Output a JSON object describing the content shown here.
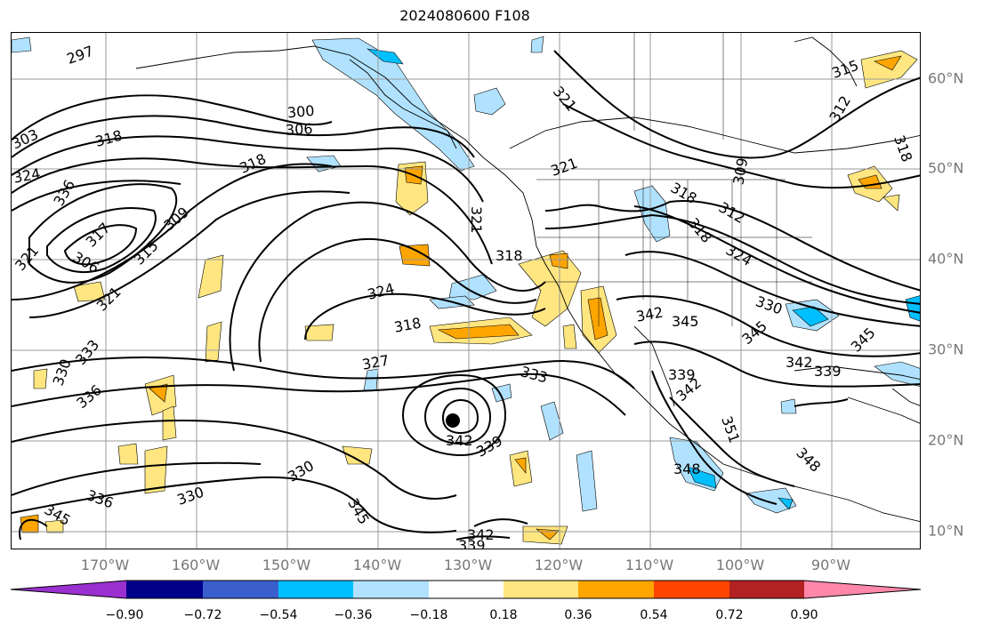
{
  "title": "2024080600 F108",
  "lon_labels": [
    "170°W",
    "160°W",
    "150°W",
    "140°W",
    "130°W",
    "120°W",
    "110°W",
    "100°W",
    "90°W"
  ],
  "lat_labels": [
    "60°N",
    "50°N",
    "40°N",
    "30°N",
    "20°N",
    "10°N"
  ],
  "colorbar": {
    "tick_labels": [
      "−0.90",
      "−0.72",
      "−0.54",
      "−0.36",
      "−0.18",
      "0.18",
      "0.36",
      "0.54",
      "0.72",
      "0.90"
    ],
    "colors": [
      "#9b30d0",
      "#00008b",
      "#3a5fcd",
      "#00bfff",
      "#b0e2ff",
      "#ffffff",
      "#ffe680",
      "#ffa500",
      "#ff4500",
      "#b22222",
      "#ff88aa"
    ]
  },
  "contour_labels": [
    {
      "text": "297",
      "rot": -20
    },
    {
      "text": "303",
      "rot": -25
    },
    {
      "text": "318",
      "rot": -15
    },
    {
      "text": "324",
      "rot": -10
    },
    {
      "text": "336",
      "rot": -60
    },
    {
      "text": "300",
      "rot": -5
    },
    {
      "text": "306",
      "rot": -3
    },
    {
      "text": "318",
      "rot": -25
    },
    {
      "text": "309",
      "rot": -40
    },
    {
      "text": "315",
      "rot": -45
    },
    {
      "text": "317",
      "rot": -45
    },
    {
      "text": "306",
      "rot": 30
    },
    {
      "text": "321",
      "rot": -50
    },
    {
      "text": "321",
      "rot": -45
    },
    {
      "text": "324",
      "rot": -15
    },
    {
      "text": "318",
      "rot": -10
    },
    {
      "text": "327",
      "rot": -10
    },
    {
      "text": "333",
      "rot": -50
    },
    {
      "text": "330",
      "rot": -70
    },
    {
      "text": "336",
      "rot": -40
    },
    {
      "text": "333",
      "rot": 15
    },
    {
      "text": "342",
      "rot": 0
    },
    {
      "text": "339",
      "rot": -30
    },
    {
      "text": "330",
      "rot": -30
    },
    {
      "text": "330",
      "rot": -20
    },
    {
      "text": "336",
      "rot": 20
    },
    {
      "text": "345",
      "rot": 30
    },
    {
      "text": "345",
      "rot": 60
    },
    {
      "text": "342",
      "rot": 0
    },
    {
      "text": "339",
      "rot": 0
    },
    {
      "text": "321",
      "rot": 50
    },
    {
      "text": "321",
      "rot": 90
    },
    {
      "text": "321",
      "rot": -20
    },
    {
      "text": "318",
      "rot": 0
    },
    {
      "text": "318",
      "rot": 30
    },
    {
      "text": "318",
      "rot": 50
    },
    {
      "text": "312",
      "rot": 30
    },
    {
      "text": "324",
      "rot": 30
    },
    {
      "text": "309",
      "rot": -80
    },
    {
      "text": "315",
      "rot": -20
    },
    {
      "text": "312",
      "rot": -60
    },
    {
      "text": "318",
      "rot": 70
    },
    {
      "text": "342",
      "rot": -10
    },
    {
      "text": "345",
      "rot": 0
    },
    {
      "text": "339",
      "rot": 0
    },
    {
      "text": "342",
      "rot": -40
    },
    {
      "text": "351",
      "rot": 70
    },
    {
      "text": "348",
      "rot": 0
    },
    {
      "text": "348",
      "rot": 45
    },
    {
      "text": "345",
      "rot": -40
    },
    {
      "text": "345",
      "rot": -45
    },
    {
      "text": "342",
      "rot": 0
    },
    {
      "text": "339",
      "rot": 0
    },
    {
      "text": "330",
      "rot": 20
    }
  ]
}
